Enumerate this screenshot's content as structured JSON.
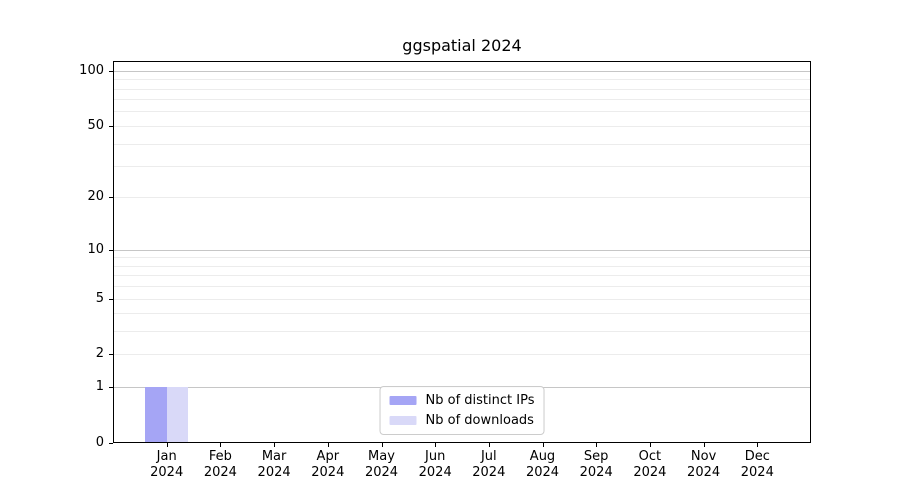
{
  "chart_data": {
    "type": "bar",
    "title": "ggspatial 2024",
    "categories": [
      "Jan",
      "Feb",
      "Mar",
      "Apr",
      "May",
      "Jun",
      "Jul",
      "Aug",
      "Sep",
      "Oct",
      "Nov",
      "Dec"
    ],
    "x_tick_year": "2024",
    "series": [
      {
        "name": "Nb of distinct IPs",
        "color": "#a5a5f5",
        "values": [
          1,
          0,
          0,
          0,
          0,
          0,
          0,
          0,
          0,
          0,
          0,
          0
        ]
      },
      {
        "name": "Nb of downloads",
        "color": "#d9d9f8",
        "values": [
          1,
          0,
          0,
          0,
          0,
          0,
          0,
          0,
          0,
          0,
          0,
          0
        ]
      }
    ],
    "y_axis": {
      "scale": "log1p",
      "tick_values": [
        0,
        1,
        2,
        5,
        10,
        20,
        50,
        100
      ],
      "ylim": [
        0,
        113
      ],
      "major_gridlines": [
        1,
        10,
        100
      ],
      "minor_gridlines": [
        2,
        3,
        4,
        5,
        6,
        7,
        8,
        9,
        20,
        30,
        40,
        50,
        60,
        70,
        80,
        90
      ]
    },
    "legend": {
      "position": "lower center"
    },
    "colors": {
      "major_grid": "#c6c6c6",
      "minor_grid": "#ececec",
      "spine": "#000000",
      "background": "#ffffff"
    },
    "bar_width_fraction": 0.4,
    "grid": true
  }
}
